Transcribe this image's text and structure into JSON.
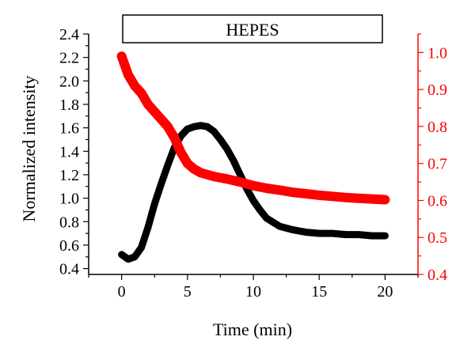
{
  "chart_data": {
    "type": "line",
    "annotation": "HEPES",
    "xlabel": "Time (min)",
    "ylabel": "Normalized intensity",
    "xlim": [
      -2.5,
      22.5
    ],
    "ylim_left": [
      0.35,
      2.4
    ],
    "ylim_right": [
      0.4,
      1.05
    ],
    "x_ticks": [
      0,
      5,
      10,
      15,
      20
    ],
    "y_left_ticks": [
      0.4,
      0.6,
      0.8,
      1.0,
      1.2,
      1.4,
      1.6,
      1.8,
      2.0,
      2.2,
      2.4
    ],
    "y_right_ticks": [
      0.4,
      0.5,
      0.6,
      0.7,
      0.8,
      0.9,
      1.0
    ],
    "y_left_tick_labels": [
      "0.4",
      "0.6",
      "0.8",
      "1.0",
      "1.2",
      "1.4",
      "1.6",
      "1.8",
      "2.0",
      "2.2",
      "2.4"
    ],
    "y_right_tick_labels": [
      "0.4",
      "0.5",
      "0.6",
      "0.7",
      "0.8",
      "0.9",
      "1.0"
    ],
    "x_tick_labels": [
      "0",
      "5",
      "10",
      "15",
      "20"
    ],
    "series": [
      {
        "axis": "left",
        "color": "#000000",
        "x": [
          0,
          0.5,
          1,
          1.5,
          2,
          2.5,
          3,
          3.5,
          4,
          4.5,
          5,
          5.5,
          6,
          6.5,
          7,
          7.5,
          8,
          8.5,
          9,
          9.5,
          10,
          10.5,
          11,
          12,
          13,
          14,
          15,
          16,
          17,
          18,
          19,
          20
        ],
        "values": [
          0.52,
          0.48,
          0.5,
          0.58,
          0.75,
          0.95,
          1.12,
          1.28,
          1.43,
          1.53,
          1.59,
          1.61,
          1.62,
          1.61,
          1.57,
          1.5,
          1.42,
          1.32,
          1.2,
          1.08,
          0.98,
          0.9,
          0.83,
          0.76,
          0.73,
          0.71,
          0.7,
          0.7,
          0.69,
          0.69,
          0.68,
          0.68
        ]
      },
      {
        "axis": "right",
        "color": "#ff0000",
        "x": [
          0,
          0.5,
          1,
          1.5,
          2,
          2.5,
          3,
          3.5,
          4,
          4.5,
          5,
          5.5,
          6,
          7,
          8,
          9,
          10,
          11,
          12,
          13,
          14,
          15,
          16,
          17,
          18,
          19,
          20
        ],
        "values": [
          0.99,
          0.94,
          0.91,
          0.89,
          0.86,
          0.84,
          0.82,
          0.8,
          0.77,
          0.73,
          0.7,
          0.685,
          0.675,
          0.665,
          0.658,
          0.65,
          0.64,
          0.633,
          0.628,
          0.622,
          0.618,
          0.614,
          0.611,
          0.608,
          0.606,
          0.604,
          0.602
        ]
      }
    ],
    "grid": false
  }
}
